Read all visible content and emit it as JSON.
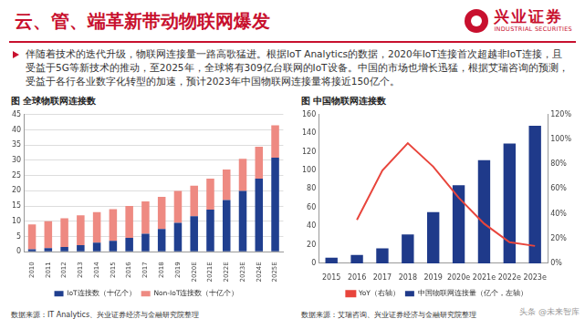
{
  "header": {
    "title": "云、管、端革新带动物联网爆发",
    "logo": "兴业证券",
    "logo_en": "INDUSTRIAL SECURITIES"
  },
  "bullet": "伴随着技术的迭代升级，物联网连接量一路高歌猛进。根据IoT Analytics的数据，2020年IoT连接首次超越非IoT连接，且受益于5G等新技术的推动，至2025年，全球将有309亿台联网的IoT设备。中国的市场也增长迅猛，根据艾瑞咨询的预测，受益于各行各业数字化转型的加速，预计2023年中国物联网连接量将接近150亿个。",
  "watermark": "头条 @未来智库",
  "chart_data": [
    {
      "type": "bar",
      "title": "图  全球物联网连接数",
      "source": "数据来源：IT Analytics、兴业证券经济与金融研究院整理",
      "categories": [
        "2010",
        "2011",
        "2012",
        "2013",
        "2014",
        "2015",
        "2016",
        "2017",
        "2018",
        "2019",
        "2020E",
        "2021E",
        "2022E",
        "2023E",
        "2024E",
        "2025E"
      ],
      "series": [
        {
          "name": "IoT连接数（十亿个）",
          "color": "#203f8f",
          "values": [
            0.8,
            1.2,
            1.6,
            2.2,
            3,
            3.6,
            4.6,
            5.9,
            7.5,
            9.5,
            11.7,
            13.8,
            17,
            20,
            24,
            30.9
          ]
        },
        {
          "name": "Non-IoT连接数（十亿个）",
          "color": "#ee8a82",
          "values": [
            8.2,
            8.8,
            9.4,
            9.8,
            10,
            10.4,
            10.4,
            10.6,
            10.5,
            10.5,
            10,
            10.2,
            10,
            10.5,
            10.5,
            10.6
          ]
        }
      ],
      "stacked": true,
      "ylim": [
        0,
        45
      ],
      "yticks": [
        0,
        5,
        10,
        15,
        20,
        25,
        30,
        35,
        40,
        45
      ],
      "grid": true,
      "legend": "bottom"
    },
    {
      "type": "bar",
      "title": "图  中国物联网连接数",
      "source": "数据来源：艾瑞咨询、兴业证券经济与金融研究院整理",
      "categories": [
        "2015",
        "2016",
        "2017",
        "2018",
        "2019",
        "2020e",
        "2021e",
        "2022e",
        "2023e"
      ],
      "series": [
        {
          "name": "中国物联网连接量（亿个，左轴）",
          "type": "bar",
          "color": "#1f3a8a",
          "values": [
            6,
            9,
            16,
            31,
            55,
            84,
            111,
            129,
            148
          ]
        },
        {
          "name": "YoY（右轴）",
          "type": "line",
          "axis": "y2",
          "marker": "none",
          "color": "#e8453c",
          "values": [
            null,
            35,
            75,
            97,
            78,
            53,
            32,
            17,
            14
          ]
        }
      ],
      "ylim": [
        0,
        160
      ],
      "yticks": [
        0,
        20,
        40,
        60,
        80,
        100,
        120,
        140,
        160
      ],
      "y2lim": [
        0,
        120
      ],
      "y2ticks": [
        {
          "value": 0,
          "label": "0%"
        },
        {
          "value": 20,
          "label": "20%"
        },
        {
          "value": 40,
          "label": "40%"
        },
        {
          "value": 60,
          "label": "60%"
        },
        {
          "value": 80,
          "label": "80%"
        },
        {
          "value": 100,
          "label": "100%"
        },
        {
          "value": 120,
          "label": "120%"
        }
      ],
      "grid": false,
      "legend": "bottom"
    }
  ]
}
